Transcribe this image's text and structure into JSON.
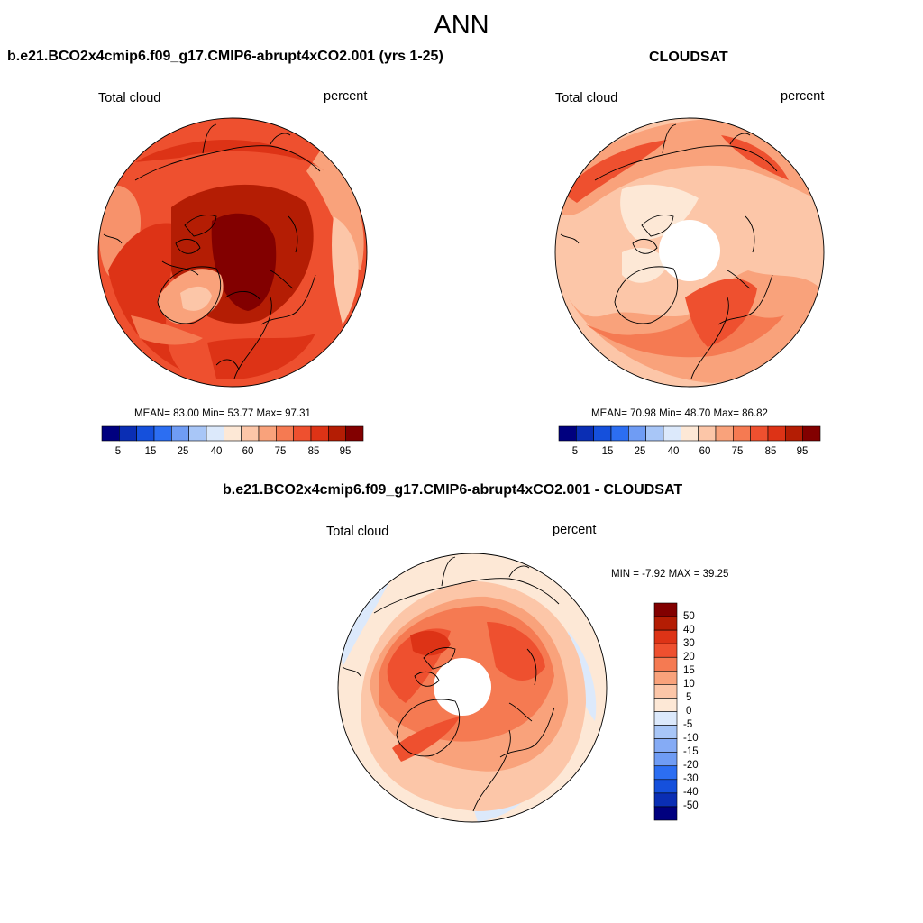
{
  "figure": {
    "title": "ANN",
    "colors": {
      "sequential": [
        "#00007f",
        "#0a2eb4",
        "#1550dc",
        "#2c6ef2",
        "#6f9cf4",
        "#a8c6f7",
        "#dce9fb",
        "#fde8d6",
        "#fcc6a8",
        "#f9a27b",
        "#f57a52",
        "#ee502f",
        "#dd3316",
        "#b41d04",
        "#820000"
      ],
      "diverging": [
        "#820000",
        "#b41d04",
        "#dd3316",
        "#ee502f",
        "#f57a52",
        "#f9a27b",
        "#fcc6a8",
        "#fde8d6",
        "#dce9fb",
        "#a8c6f7",
        "#85abf5",
        "#6f9cf4",
        "#2c6ef2",
        "#1550dc",
        "#0a2eb4",
        "#00007f"
      ],
      "coastline": "#000000"
    }
  },
  "panels": {
    "model": {
      "title": "b.e21.BCO2x4cmip6.f09_g17.CMIP6-abrupt4xCO2.001 (yrs 1-25)",
      "variable": "Total cloud",
      "units": "percent",
      "stats": {
        "mean": "83.00",
        "min": "53.77",
        "max": "97.31"
      },
      "stats_text": "MEAN=  83.00  Min=  53.77  Max=  97.31",
      "colorbar_ticks": [
        "5",
        "15",
        "25",
        "40",
        "60",
        "75",
        "85",
        "95"
      ]
    },
    "obs": {
      "title": "CLOUDSAT",
      "variable": "Total cloud",
      "units": "percent",
      "stats": {
        "mean": "70.98",
        "min": "48.70",
        "max": "86.82"
      },
      "stats_text": "MEAN=  70.98  Min=  48.70  Max=  86.82",
      "colorbar_ticks": [
        "5",
        "15",
        "25",
        "40",
        "60",
        "75",
        "85",
        "95"
      ]
    },
    "diff": {
      "title": "b.e21.BCO2x4cmip6.f09_g17.CMIP6-abrupt4xCO2.001 - CLOUDSAT",
      "variable": "Total cloud",
      "units": "percent",
      "stats": {
        "min": "-7.92",
        "max": "39.25"
      },
      "stats_text": "MIN =  -7.92 MAX =  39.25",
      "colorbar_ticks": [
        "50",
        "40",
        "30",
        "20",
        "15",
        "10",
        "5",
        "0",
        "-5",
        "-10",
        "-15",
        "-20",
        "-30",
        "-40",
        "-50"
      ]
    }
  }
}
